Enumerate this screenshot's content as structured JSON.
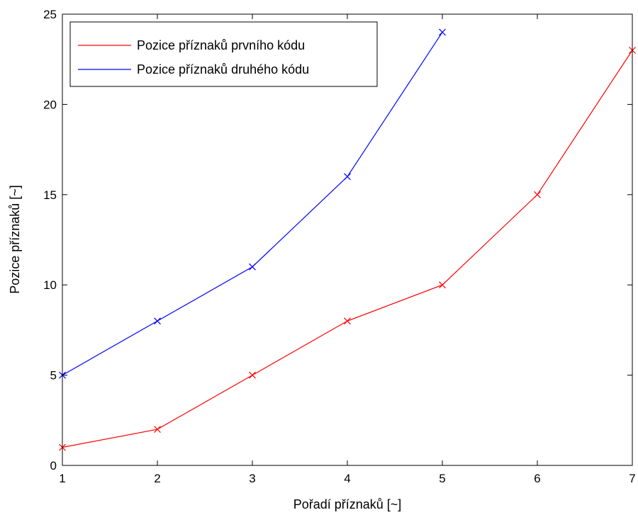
{
  "chart_data": {
    "type": "line",
    "xlabel": "Pořadí příznaků [~]",
    "ylabel": "Pozice příznaků [~]",
    "xlim": [
      1,
      7
    ],
    "ylim": [
      0,
      25
    ],
    "xticks": [
      1,
      2,
      3,
      4,
      5,
      6,
      7
    ],
    "yticks": [
      0,
      5,
      10,
      15,
      20,
      25
    ],
    "grid": false,
    "legend_position": "top-left",
    "marker": "x",
    "series": [
      {
        "name": "Pozice příznaků prvního kódu",
        "color": "#ff0000",
        "x": [
          1,
          2,
          3,
          4,
          5,
          6,
          7
        ],
        "y": [
          1,
          2,
          5,
          8,
          10,
          15,
          23
        ]
      },
      {
        "name": "Pozice příznaků druhého kódu",
        "color": "#0000ff",
        "x": [
          1,
          2,
          3,
          4,
          5
        ],
        "y": [
          5,
          8,
          11,
          16,
          24
        ]
      }
    ]
  }
}
